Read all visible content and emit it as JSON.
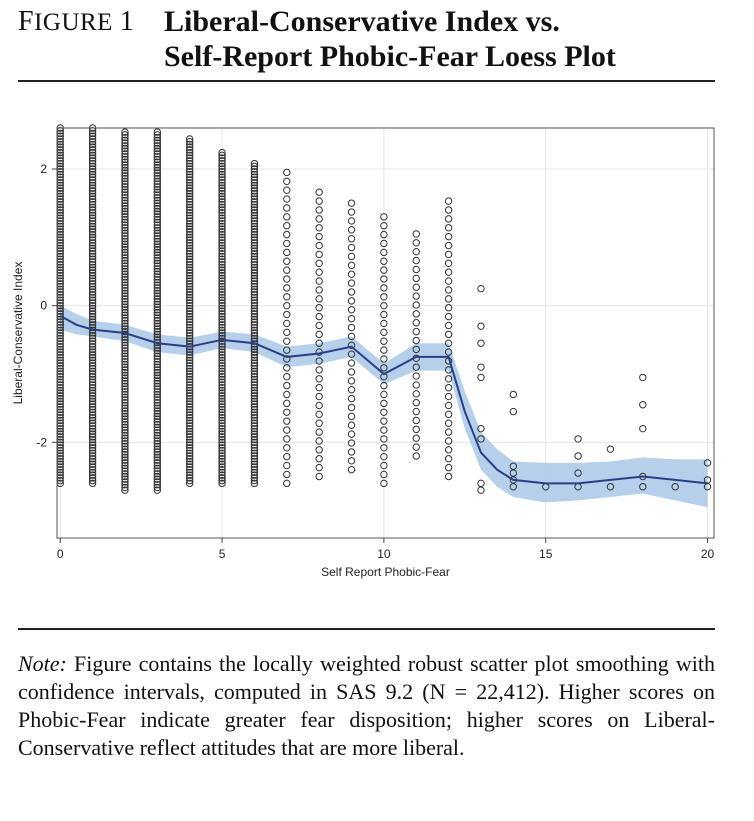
{
  "figure": {
    "label_first": "F",
    "label_rest": "IGURE",
    "label_number": "1",
    "title_line1": "Liberal-Conservative Index vs.",
    "title_line2": "Self-Report Phobic-Fear Loess Plot"
  },
  "note": {
    "lead": "Note:",
    "text": " Figure contains the locally weighted robust scatter plot smoothing with confidence intervals, computed in SAS 9.2 (N = 22,412). Higher scores on Phobic-Fear indicate greater fear disposition; higher scores on Liberal-Conservative reflect attitudes that are more liberal."
  },
  "colors": {
    "band": "#a9c8e8",
    "line": "#2b3f86",
    "marker": "#333333",
    "grid": "#e6e6e6"
  },
  "chart_data": {
    "type": "scatter",
    "title": "",
    "xlabel": "Self Report Phobic-Fear",
    "ylabel": "Liberal-Conservative Index",
    "xlim": [
      -0.1,
      20.2
    ],
    "ylim": [
      -3.4,
      2.6
    ],
    "xticks": [
      0,
      5,
      10,
      15,
      20
    ],
    "yticks": [
      -2,
      0,
      2
    ],
    "xtick_labels": [
      "0",
      "5",
      "10",
      "15",
      "20"
    ],
    "ytick_labels": [
      "-2",
      "0",
      "2"
    ],
    "grid": true,
    "scatter_columns": [
      {
        "x": 0,
        "ymin": -2.6,
        "ymax": 2.6,
        "dense": true
      },
      {
        "x": 1,
        "ymin": -2.6,
        "ymax": 2.6,
        "dense": true
      },
      {
        "x": 2,
        "ymin": -2.7,
        "ymax": 2.55,
        "dense": true
      },
      {
        "x": 3,
        "ymin": -2.7,
        "ymax": 2.55,
        "dense": true
      },
      {
        "x": 4,
        "ymin": -2.6,
        "ymax": 2.45,
        "dense": true
      },
      {
        "x": 5,
        "ymin": -2.6,
        "ymax": 2.25,
        "dense": true
      },
      {
        "x": 6,
        "ymin": -2.6,
        "ymax": 2.1,
        "dense": true
      },
      {
        "x": 7,
        "ymin": -2.6,
        "ymax": 1.95,
        "dense": false
      },
      {
        "x": 8,
        "ymin": -2.5,
        "ymax": 1.75,
        "dense": false
      },
      {
        "x": 9,
        "ymin": -2.4,
        "ymax": 1.6,
        "dense": false
      },
      {
        "x": 10,
        "ymin": -2.6,
        "ymax": 1.4,
        "dense": false
      },
      {
        "x": 11,
        "ymin": -2.2,
        "ymax": 1.15,
        "dense": false
      },
      {
        "x": 12,
        "ymin": -2.5,
        "ymax": 1.65,
        "dense": false
      }
    ],
    "scatter_points": [
      {
        "x": 13,
        "y": 0.25
      },
      {
        "x": 13,
        "y": -0.3
      },
      {
        "x": 13,
        "y": -0.55
      },
      {
        "x": 13,
        "y": -0.9
      },
      {
        "x": 13,
        "y": -1.05
      },
      {
        "x": 13,
        "y": -1.8
      },
      {
        "x": 13,
        "y": -1.95
      },
      {
        "x": 13,
        "y": -2.6
      },
      {
        "x": 13,
        "y": -2.7
      },
      {
        "x": 14,
        "y": -1.3
      },
      {
        "x": 14,
        "y": -1.55
      },
      {
        "x": 14,
        "y": -2.35
      },
      {
        "x": 14,
        "y": -2.45
      },
      {
        "x": 14,
        "y": -2.55
      },
      {
        "x": 14,
        "y": -2.65
      },
      {
        "x": 15,
        "y": -2.65
      },
      {
        "x": 16,
        "y": -1.95
      },
      {
        "x": 16,
        "y": -2.2
      },
      {
        "x": 16,
        "y": -2.45
      },
      {
        "x": 16,
        "y": -2.65
      },
      {
        "x": 17,
        "y": -2.1
      },
      {
        "x": 17,
        "y": -2.65
      },
      {
        "x": 18,
        "y": -1.05
      },
      {
        "x": 18,
        "y": -1.45
      },
      {
        "x": 18,
        "y": -1.8
      },
      {
        "x": 18,
        "y": -2.5
      },
      {
        "x": 18,
        "y": -2.65
      },
      {
        "x": 19,
        "y": -2.65
      },
      {
        "x": 20,
        "y": -2.3
      },
      {
        "x": 20,
        "y": -2.55
      },
      {
        "x": 20,
        "y": -2.65
      }
    ],
    "loess": {
      "x": [
        0,
        0.5,
        1,
        2,
        3,
        4,
        5,
        6,
        7,
        8,
        9,
        10,
        11,
        12,
        12.5,
        13,
        13.5,
        14,
        15,
        16,
        17,
        18,
        19,
        20
      ],
      "y": [
        -0.15,
        -0.28,
        -0.35,
        -0.4,
        -0.55,
        -0.6,
        -0.5,
        -0.55,
        -0.75,
        -0.7,
        -0.6,
        -1.0,
        -0.75,
        -0.75,
        -1.55,
        -2.15,
        -2.4,
        -2.55,
        -2.6,
        -2.6,
        -2.55,
        -2.5,
        -2.55,
        -2.6
      ],
      "lower": [
        -0.35,
        -0.42,
        -0.45,
        -0.52,
        -0.68,
        -0.73,
        -0.62,
        -0.68,
        -0.9,
        -0.85,
        -0.75,
        -1.15,
        -0.95,
        -0.95,
        -1.8,
        -2.4,
        -2.65,
        -2.8,
        -2.88,
        -2.85,
        -2.8,
        -2.75,
        -2.85,
        -2.95
      ],
      "upper": [
        0.0,
        -0.12,
        -0.22,
        -0.28,
        -0.42,
        -0.47,
        -0.38,
        -0.42,
        -0.6,
        -0.55,
        -0.45,
        -0.85,
        -0.55,
        -0.55,
        -1.25,
        -1.85,
        -2.1,
        -2.28,
        -2.3,
        -2.3,
        -2.28,
        -2.22,
        -2.25,
        -2.25
      ]
    }
  }
}
